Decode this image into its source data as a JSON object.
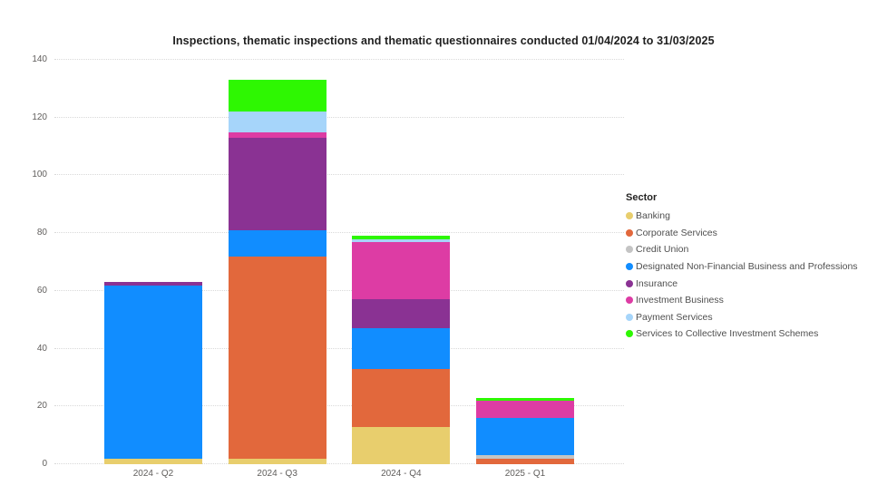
{
  "title": "Inspections, thematic inspections and thematic questionnaires conducted 01/04/2024 to 31/03/2025",
  "chart_data": {
    "type": "bar",
    "stacked": true,
    "title": "Inspections, thematic inspections and thematic questionnaires conducted 01/04/2024 to 31/03/2025",
    "categories": [
      "2024 - Q2",
      "2024 - Q3",
      "2024 - Q4",
      "2025 - Q1"
    ],
    "series": [
      {
        "name": "Banking",
        "color": "#E8CE6D",
        "values": [
          2,
          2,
          13,
          0
        ]
      },
      {
        "name": "Corporate Services",
        "color": "#E2683C",
        "values": [
          0,
          70,
          20,
          2
        ]
      },
      {
        "name": "Credit Union",
        "color": "#C4C4C4",
        "values": [
          0,
          0,
          0,
          1
        ]
      },
      {
        "name": "Designated Non-Financial Business and Professions",
        "color": "#118DFF",
        "values": [
          60,
          9,
          14,
          13
        ]
      },
      {
        "name": "Insurance",
        "color": "#8A3293",
        "values": [
          1,
          32,
          10,
          0
        ]
      },
      {
        "name": "Investment Business",
        "color": "#DD3CA4",
        "values": [
          0,
          2,
          20,
          6
        ]
      },
      {
        "name": "Payment Services",
        "color": "#A6D5FA",
        "values": [
          0,
          7,
          1,
          0
        ]
      },
      {
        "name": "Services to Collective Investment Schemes",
        "color": "#2EF702",
        "values": [
          0,
          11,
          1,
          1
        ]
      }
    ],
    "totals": {
      "2024 - Q2": 63,
      "2024 - Q3": 133,
      "2024 - Q4": 79,
      "2025 - Q1": 23
    },
    "xlabel": "",
    "ylabel": "",
    "y_axis": {
      "min": 0,
      "max": 140,
      "tick_step": 20,
      "ticks": [
        0,
        20,
        40,
        60,
        80,
        100,
        120,
        140
      ]
    },
    "legend_title": "Sector",
    "legend_position": "right",
    "grid": "horizontal-dotted"
  }
}
